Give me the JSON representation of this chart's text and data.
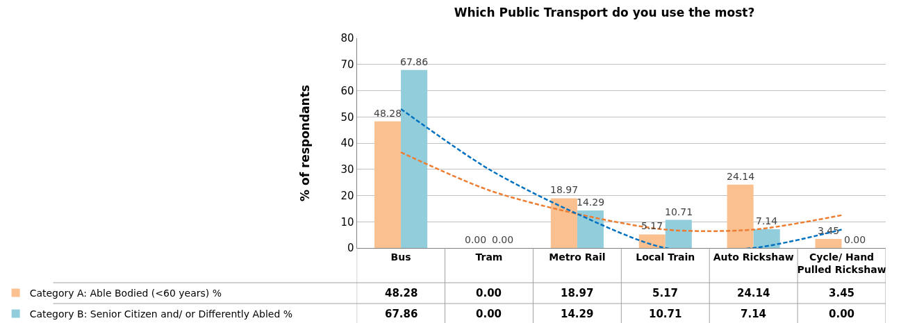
{
  "chart_data": {
    "type": "bar",
    "title": "Which Public Transport do you use the most?",
    "ylabel": "% of respondants",
    "categories": [
      "Bus",
      "Tram",
      "Metro Rail",
      "Local Train",
      "Auto Rickshaw",
      "Cycle/ Hand Pulled Rickshaw"
    ],
    "series": [
      {
        "name": "Category A: Able Bodied (<60 years) %",
        "color": "#fac090",
        "values": [
          48.28,
          0,
          18.97,
          5.17,
          24.14,
          3.45
        ],
        "value_labels": [
          "48.28",
          "0.00",
          "18.97",
          "5.17",
          "24.14",
          "3.45"
        ]
      },
      {
        "name": "Category B: Senior Citizen and/ or Differently Abled %",
        "color": "#92cddc",
        "values": [
          67.86,
          0,
          14.29,
          10.71,
          7.14,
          0
        ],
        "value_labels": [
          "67.86",
          "0.00",
          "14.29",
          "10.71",
          "7.14",
          "0.00"
        ]
      },
      {
        "type": "line",
        "color": "#ed7d31",
        "line_style": "dashed",
        "values": [
          36.5,
          22,
          13,
          7,
          7,
          12.5
        ]
      },
      {
        "type": "line",
        "color": "#0070c0",
        "line_style": "dashed",
        "values": [
          53,
          30,
          13,
          0,
          0,
          7
        ]
      }
    ],
    "ylim": [
      0,
      80
    ],
    "yticks": [
      0,
      10,
      20,
      30,
      40,
      50,
      60,
      70,
      80
    ],
    "grid": "y",
    "legend": "bottom"
  }
}
